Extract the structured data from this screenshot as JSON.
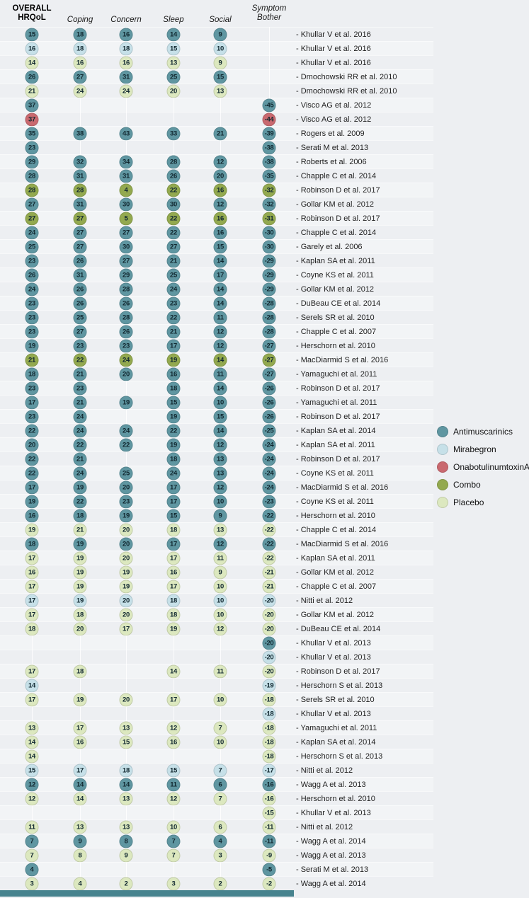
{
  "header": {
    "columns": [
      {
        "key": "overall",
        "label": "OVERALL\nHRQoL",
        "bold": true
      },
      {
        "key": "coping",
        "label": "Coping",
        "bold": false
      },
      {
        "key": "concern",
        "label": "Concern",
        "bold": false
      },
      {
        "key": "sleep",
        "label": "Sleep",
        "bold": false
      },
      {
        "key": "social",
        "label": "Social",
        "bold": false
      },
      {
        "key": "bother",
        "label": "Symptom\nBother",
        "bold": false
      }
    ]
  },
  "legend": {
    "items": [
      {
        "key": "antimuscarinics",
        "label": "Antimuscarinics",
        "color": "#5F96A1"
      },
      {
        "key": "mirabegron",
        "label": "Mirabegron",
        "color": "#C6E0E8"
      },
      {
        "key": "onabotulinumtoxinA",
        "label": "OnabotulinumtoxinA",
        "color": "#C9696F"
      },
      {
        "key": "combo",
        "label": "Combo",
        "color": "#93A94F"
      },
      {
        "key": "placebo",
        "label": "Placebo",
        "color": "#DCE8BF"
      }
    ]
  },
  "chart_data": {
    "type": "table",
    "variant": "dot-matrix",
    "columns": [
      "OVERALL HRQoL",
      "Coping",
      "Concern",
      "Sleep",
      "Social",
      "Symptom Bother"
    ],
    "rows": [
      {
        "study": "Khullar V et al. 2016",
        "group": "antimuscarinics",
        "overall": 15,
        "coping": 18,
        "concern": 16,
        "sleep": 14,
        "social": 9,
        "bother": null
      },
      {
        "study": "Khullar V et al. 2016",
        "group": "mirabegron",
        "overall": 16,
        "coping": 18,
        "concern": 18,
        "sleep": 15,
        "social": 10,
        "bother": null
      },
      {
        "study": "Khullar V et al. 2016",
        "group": "placebo",
        "overall": 14,
        "coping": 16,
        "concern": 16,
        "sleep": 13,
        "social": 9,
        "bother": null
      },
      {
        "study": "Dmochowski RR et al. 2010",
        "group": "antimuscarinics",
        "overall": 26,
        "coping": 27,
        "concern": 31,
        "sleep": 25,
        "social": 15,
        "bother": null
      },
      {
        "study": "Dmochowski RR et al. 2010",
        "group": "placebo",
        "overall": 21,
        "coping": 24,
        "concern": 24,
        "sleep": 20,
        "social": 13,
        "bother": null
      },
      {
        "study": "Visco AG et al. 2012",
        "group": "antimuscarinics",
        "overall": 37,
        "coping": null,
        "concern": null,
        "sleep": null,
        "social": null,
        "bother": -45
      },
      {
        "study": "Visco AG et al. 2012",
        "group": "onabotulinumtoxinA",
        "overall": 37,
        "coping": null,
        "concern": null,
        "sleep": null,
        "social": null,
        "bother": -44
      },
      {
        "study": "Rogers et al. 2009",
        "group": "antimuscarinics",
        "overall": 35,
        "coping": 38,
        "concern": 43,
        "sleep": 33,
        "social": 21,
        "bother": -39
      },
      {
        "study": "Serati M et al. 2013",
        "group": "antimuscarinics",
        "overall": 23,
        "coping": null,
        "concern": null,
        "sleep": null,
        "social": null,
        "bother": -38
      },
      {
        "study": "Roberts et al. 2006",
        "group": "antimuscarinics",
        "overall": 29,
        "coping": 32,
        "concern": 34,
        "sleep": 28,
        "social": 12,
        "bother": -38
      },
      {
        "study": "Chapple C et al. 2014",
        "group": "antimuscarinics",
        "overall": 28,
        "coping": 31,
        "concern": 31,
        "sleep": 26,
        "social": 20,
        "bother": -35
      },
      {
        "study": "Robinson D et al. 2017",
        "group": "combo",
        "overall": 28,
        "coping": 28,
        "concern": 4,
        "sleep": 22,
        "social": 16,
        "bother": -32
      },
      {
        "study": "Gollar KM et al. 2012",
        "group": "antimuscarinics",
        "overall": 27,
        "coping": 31,
        "concern": 30,
        "sleep": 30,
        "social": 12,
        "bother": -32
      },
      {
        "study": "Robinson D et al. 2017",
        "group": "combo",
        "overall": 27,
        "coping": 27,
        "concern": 5,
        "sleep": 22,
        "social": 16,
        "bother": -31
      },
      {
        "study": "Chapple C et al. 2014",
        "group": "antimuscarinics",
        "overall": 24,
        "coping": 27,
        "concern": 27,
        "sleep": 22,
        "social": 16,
        "bother": -30
      },
      {
        "study": "Garely et al. 2006",
        "group": "antimuscarinics",
        "overall": 25,
        "coping": 27,
        "concern": 30,
        "sleep": 27,
        "social": 15,
        "bother": -30
      },
      {
        "study": "Kaplan SA et al. 2011",
        "group": "antimuscarinics",
        "overall": 23,
        "coping": 26,
        "concern": 27,
        "sleep": 21,
        "social": 14,
        "bother": -29
      },
      {
        "study": "Coyne KS et al. 2011",
        "group": "antimuscarinics",
        "overall": 26,
        "coping": 31,
        "concern": 29,
        "sleep": 25,
        "social": 17,
        "bother": -29
      },
      {
        "study": "Gollar KM et al. 2012",
        "group": "antimuscarinics",
        "overall": 24,
        "coping": 26,
        "concern": 28,
        "sleep": 24,
        "social": 14,
        "bother": -29
      },
      {
        "study": "DuBeau CE et al. 2014",
        "group": "antimuscarinics",
        "overall": 23,
        "coping": 26,
        "concern": 26,
        "sleep": 23,
        "social": 14,
        "bother": -28
      },
      {
        "study": "Serels SR et al. 2010",
        "group": "antimuscarinics",
        "overall": 23,
        "coping": 25,
        "concern": 28,
        "sleep": 22,
        "social": 11,
        "bother": -28
      },
      {
        "study": "Chapple C et al. 2007",
        "group": "antimuscarinics",
        "overall": 23,
        "coping": 27,
        "concern": 26,
        "sleep": 21,
        "social": 12,
        "bother": -28
      },
      {
        "study": "Herschorn et al. 2010",
        "group": "antimuscarinics",
        "overall": 19,
        "coping": 23,
        "concern": 23,
        "sleep": 17,
        "social": 12,
        "bother": -27
      },
      {
        "study": "MacDiarmid S et al. 2016",
        "group": "combo",
        "overall": 21,
        "coping": 22,
        "concern": 24,
        "sleep": 19,
        "social": 14,
        "bother": -27
      },
      {
        "study": "Yamaguchi et al. 2011",
        "group": "antimuscarinics",
        "overall": 18,
        "coping": 21,
        "concern": 20,
        "sleep": 16,
        "social": 11,
        "bother": -27
      },
      {
        "study": "Robinson D et al. 2017",
        "group": "antimuscarinics",
        "overall": 23,
        "coping": 23,
        "concern": null,
        "sleep": 18,
        "social": 14,
        "bother": -26
      },
      {
        "study": "Yamaguchi et al. 2011",
        "group": "antimuscarinics",
        "overall": 17,
        "coping": 21,
        "concern": 19,
        "sleep": 15,
        "social": 10,
        "bother": -26
      },
      {
        "study": "Robinson D et al. 2017",
        "group": "antimuscarinics",
        "overall": 23,
        "coping": 24,
        "concern": null,
        "sleep": 19,
        "social": 15,
        "bother": -26
      },
      {
        "study": "Kaplan SA et al. 2014",
        "group": "antimuscarinics",
        "overall": 22,
        "coping": 24,
        "concern": 24,
        "sleep": 22,
        "social": 14,
        "bother": -25
      },
      {
        "study": "Kaplan SA et al. 2011",
        "group": "antimuscarinics",
        "overall": 20,
        "coping": 22,
        "concern": 22,
        "sleep": 19,
        "social": 12,
        "bother": -24
      },
      {
        "study": "Robinson D et al. 2017",
        "group": "antimuscarinics",
        "overall": 22,
        "coping": 21,
        "concern": null,
        "sleep": 18,
        "social": 13,
        "bother": -24
      },
      {
        "study": "Coyne KS et al. 2011",
        "group": "antimuscarinics",
        "overall": 22,
        "coping": 24,
        "concern": 25,
        "sleep": 24,
        "social": 13,
        "bother": -24
      },
      {
        "study": "MacDiarmid S et al. 2016",
        "group": "antimuscarinics",
        "overall": 17,
        "coping": 19,
        "concern": 20,
        "sleep": 17,
        "social": 12,
        "bother": -24
      },
      {
        "study": "Coyne KS et al. 2011",
        "group": "antimuscarinics",
        "overall": 19,
        "coping": 22,
        "concern": 23,
        "sleep": 17,
        "social": 10,
        "bother": -23
      },
      {
        "study": "Herschorn et al. 2010",
        "group": "antimuscarinics",
        "overall": 16,
        "coping": 18,
        "concern": 19,
        "sleep": 15,
        "social": 9,
        "bother": -22
      },
      {
        "study": "Chapple C et al. 2014",
        "group": "placebo",
        "overall": 19,
        "coping": 21,
        "concern": 20,
        "sleep": 18,
        "social": 13,
        "bother": -22
      },
      {
        "study": "MacDiarmid S et al. 2016",
        "group": "antimuscarinics",
        "overall": 18,
        "coping": 19,
        "concern": 20,
        "sleep": 17,
        "social": 12,
        "bother": -22
      },
      {
        "study": "Kaplan SA et al. 2011",
        "group": "placebo",
        "overall": 17,
        "coping": 19,
        "concern": 20,
        "sleep": 17,
        "social": 11,
        "bother": -22
      },
      {
        "study": "Gollar KM et al. 2012",
        "group": "placebo",
        "overall": 16,
        "coping": 19,
        "concern": 19,
        "sleep": 16,
        "social": 9,
        "bother": -21
      },
      {
        "study": "Chapple C et al. 2007",
        "group": "placebo",
        "overall": 17,
        "coping": 19,
        "concern": 19,
        "sleep": 17,
        "social": 10,
        "bother": -21
      },
      {
        "study": "Nitti et al. 2012",
        "group": "mirabegron",
        "overall": 17,
        "coping": 19,
        "concern": 20,
        "sleep": 18,
        "social": 10,
        "bother": -20
      },
      {
        "study": "Gollar KM et al. 2012",
        "group": "placebo",
        "overall": 17,
        "coping": 18,
        "concern": 20,
        "sleep": 18,
        "social": 10,
        "bother": -20
      },
      {
        "study": "DuBeau CE et al. 2014",
        "group": "placebo",
        "overall": 18,
        "coping": 20,
        "concern": 17,
        "sleep": 19,
        "social": 12,
        "bother": -20
      },
      {
        "study": "Khullar V et al. 2013",
        "group": "antimuscarinics",
        "overall": null,
        "coping": null,
        "concern": null,
        "sleep": null,
        "social": null,
        "bother": -20
      },
      {
        "study": "Khullar V et al. 2013",
        "group": "mirabegron",
        "overall": null,
        "coping": null,
        "concern": null,
        "sleep": null,
        "social": null,
        "bother": -20
      },
      {
        "study": "Robinson D et al. 2017",
        "group": "placebo",
        "overall": 17,
        "coping": 18,
        "concern": null,
        "sleep": 14,
        "social": 11,
        "bother": -20
      },
      {
        "study": "Herschorn S et al. 2013",
        "group": "mirabegron",
        "overall": 14,
        "coping": null,
        "concern": null,
        "sleep": null,
        "social": null,
        "bother": -19
      },
      {
        "study": "Serels SR et al. 2010",
        "group": "placebo",
        "overall": 17,
        "coping": 19,
        "concern": 20,
        "sleep": 17,
        "social": 10,
        "bother": -18
      },
      {
        "study": "Khullar V et al. 2013",
        "group": "mirabegron",
        "overall": null,
        "coping": null,
        "concern": null,
        "sleep": null,
        "social": null,
        "bother": -18
      },
      {
        "study": "Yamaguchi et al. 2011",
        "group": "placebo",
        "overall": 13,
        "coping": 17,
        "concern": 13,
        "sleep": 12,
        "social": 7,
        "bother": -18
      },
      {
        "study": "Kaplan SA et al. 2014",
        "group": "placebo",
        "overall": 14,
        "coping": 16,
        "concern": 15,
        "sleep": 16,
        "social": 10,
        "bother": -18
      },
      {
        "study": "Herschorn S et al. 2013",
        "group": "placebo",
        "overall": 14,
        "coping": null,
        "concern": null,
        "sleep": null,
        "social": null,
        "bother": -18
      },
      {
        "study": "Nitti et al. 2012",
        "group": "mirabegron",
        "overall": 15,
        "coping": 17,
        "concern": 18,
        "sleep": 15,
        "social": 7,
        "bother": -17
      },
      {
        "study": "Wagg A et al. 2013",
        "group": "antimuscarinics",
        "overall": 12,
        "coping": 14,
        "concern": 14,
        "sleep": 11,
        "social": 6,
        "bother": -16
      },
      {
        "study": "Herschorn et al. 2010",
        "group": "placebo",
        "overall": 12,
        "coping": 14,
        "concern": 13,
        "sleep": 12,
        "social": 7,
        "bother": -16
      },
      {
        "study": "Khullar V et al. 2013",
        "group": "placebo",
        "overall": null,
        "coping": null,
        "concern": null,
        "sleep": null,
        "social": null,
        "bother": -15
      },
      {
        "study": "Nitti et al. 2012",
        "group": "placebo",
        "overall": 11,
        "coping": 13,
        "concern": 13,
        "sleep": 10,
        "social": 6,
        "bother": -11
      },
      {
        "study": "Wagg A et al. 2014",
        "group": "antimuscarinics",
        "overall": 7,
        "coping": 9,
        "concern": 8,
        "sleep": 7,
        "social": 4,
        "bother": -11
      },
      {
        "study": "Wagg A et al. 2013",
        "group": "placebo",
        "overall": 7,
        "coping": 8,
        "concern": 9,
        "sleep": 7,
        "social": 3,
        "bother": -9
      },
      {
        "study": "Serati M et al. 2013",
        "group": "antimuscarinics",
        "overall": 4,
        "coping": null,
        "concern": null,
        "sleep": null,
        "social": null,
        "bother": -5
      },
      {
        "study": "Wagg A et al. 2014",
        "group": "placebo",
        "overall": 3,
        "coping": 4,
        "concern": 2,
        "sleep": 3,
        "social": 2,
        "bother": -2
      }
    ]
  }
}
